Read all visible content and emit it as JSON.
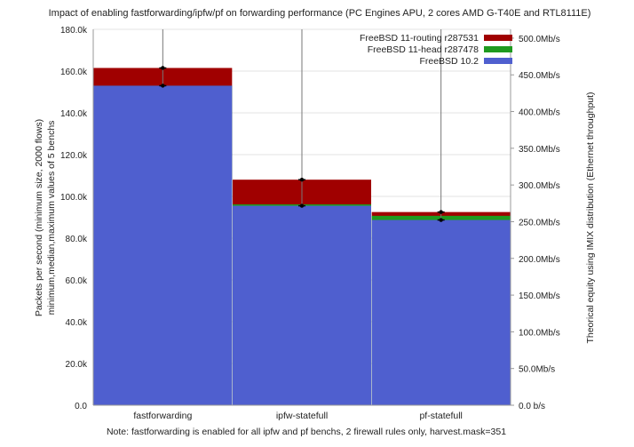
{
  "chart_data": {
    "type": "bar",
    "title": "Impact of enabling fastforwarding/ipfw/pf on forwarding performance (PC Engines APU, 2 cores AMD G-T40E and RTL8111E)",
    "ylabel_line1": "Packets per second (minimum size, 2000 flows)",
    "ylabel_line2": "minimum,median,maximum values of 5 benchs",
    "y2label": "Theorical equity using IMIX distribution (Ethernet throughput)",
    "footnote": "Note: fastforwarding is enabled for all ipfw and pf benchs, 2 firewall rules only, harvest.mask=351",
    "categories": [
      "fastforwarding",
      "ipfw-statefull",
      "pf-statefull"
    ],
    "ylim": [
      0,
      180000
    ],
    "yticks": [
      "0.0",
      "20.0k",
      "40.0k",
      "60.0k",
      "80.0k",
      "100.0k",
      "120.0k",
      "140.0k",
      "160.0k",
      "180.0k"
    ],
    "y2ticks": [
      "0.0 b/s",
      "50.0Mb/s",
      "100.0Mb/s",
      "150.0Mb/s",
      "200.0Mb/s",
      "250.0Mb/s",
      "300.0Mb/s",
      "350.0Mb/s",
      "400.0Mb/s",
      "450.0Mb/s",
      "500.0Mb/s"
    ],
    "y2_max_mbps": 512,
    "series": [
      {
        "name": "FreeBSD 10.2",
        "color": "#4f5fcf",
        "values": [
          153000,
          95500,
          88700
        ]
      },
      {
        "name": "FreeBSD 11-head r287478",
        "color": "#1f9a1f",
        "values": [
          153000,
          96200,
          90700
        ]
      },
      {
        "name": "FreeBSD 11-routing r287531",
        "color": "#a00000",
        "values": [
          161500,
          108000,
          92500
        ]
      }
    ],
    "error_bars": [
      {
        "min": 153000,
        "max": 161500,
        "line_max": 180000
      },
      {
        "min": 95500,
        "max": 108000,
        "line_max": 180000
      },
      {
        "min": 88700,
        "max": 92500,
        "line_max": 180000
      }
    ],
    "grid": true,
    "legend": "top-right"
  }
}
